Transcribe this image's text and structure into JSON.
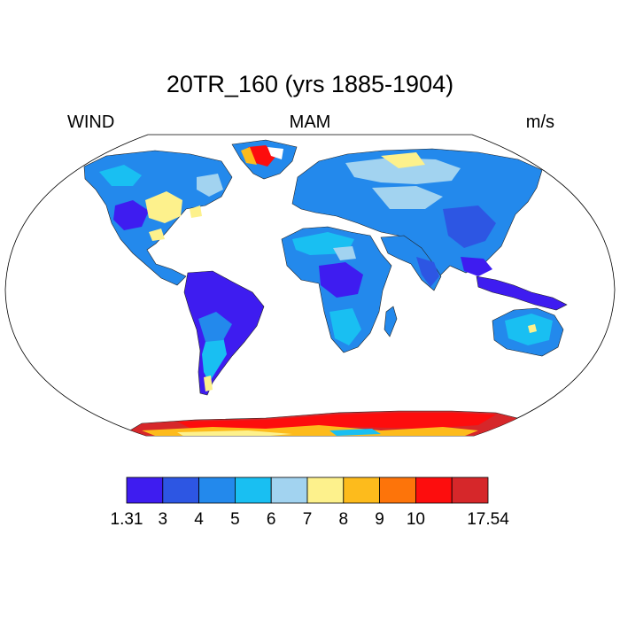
{
  "title": "20TR_160 (yrs 1885-1904)",
  "left_string": "WIND",
  "center_string": "MAM",
  "right_string": "m/s",
  "colorbar": {
    "labels": [
      "1.31",
      "3",
      "4",
      "5",
      "6",
      "7",
      "8",
      "9",
      "10",
      "17.54"
    ],
    "colors": [
      "#3e1cf0",
      "#2d56e3",
      "#2389ec",
      "#19bff2",
      "#a2d3f0",
      "#fdf18c",
      "#fdbb1c",
      "#fd740a",
      "#fd0d0d",
      "#d6272a"
    ]
  },
  "map": {
    "projection": "Robinson",
    "variable": "WIND",
    "units": "m/s",
    "land_colors": {
      "base": "#2389ec",
      "humid": "#2d56e3",
      "deep": "#3e1cf0",
      "light": "#19bff2",
      "pale": "#a2d3f0",
      "yellow": "#fdf18c",
      "orange": "#fdbb1c",
      "darkorange": "#fd740a",
      "red": "#fd0d0d",
      "maroon": "#d6272a"
    }
  }
}
